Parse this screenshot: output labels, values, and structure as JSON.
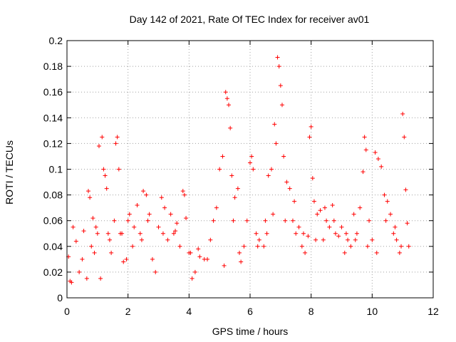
{
  "chart_data": {
    "type": "scatter",
    "title": "Day 142 of 2021, Rate Of TEC Index for receiver av01",
    "xlabel": "GPS time / hours",
    "ylabel": "ROTI / TECUs",
    "xlim": [
      0,
      12
    ],
    "ylim": [
      0,
      0.2
    ],
    "xticks": [
      "0",
      "2",
      "4",
      "6",
      "8",
      "10",
      "12"
    ],
    "yticks": [
      "0",
      "0.02",
      "0.04",
      "0.06",
      "0.08",
      "0.1",
      "0.12",
      "0.14",
      "0.16",
      "0.18",
      "0.2"
    ],
    "grid": true,
    "marker": "+",
    "color": "#ff0000",
    "series": [
      {
        "name": "",
        "x": [
          0.05,
          0.1,
          0.2,
          0.3,
          0.4,
          0.5,
          0.55,
          0.65,
          0.7,
          0.75,
          0.8,
          0.85,
          0.95,
          1.0,
          1.05,
          1.15,
          1.2,
          1.25,
          1.3,
          1.35,
          1.45,
          1.55,
          1.6,
          1.65,
          1.7,
          1.75,
          1.85,
          1.95,
          2.05,
          2.15,
          2.2,
          2.3,
          2.4,
          2.5,
          2.6,
          2.65,
          2.7,
          2.8,
          2.9,
          3.0,
          3.1,
          3.2,
          3.3,
          3.4,
          3.5,
          3.6,
          3.7,
          3.8,
          3.85,
          3.9,
          4.0,
          4.1,
          4.2,
          4.3,
          4.5,
          4.7,
          4.8,
          4.9,
          5.0,
          5.1,
          5.2,
          5.25,
          5.3,
          5.35,
          5.4,
          5.5,
          5.6,
          5.7,
          5.8,
          5.9,
          6.0,
          6.05,
          6.1,
          6.2,
          6.3,
          6.45,
          6.5,
          6.6,
          6.7,
          6.8,
          6.85,
          6.9,
          6.95,
          7.0,
          7.05,
          7.1,
          7.2,
          7.3,
          7.4,
          7.5,
          7.6,
          7.7,
          7.8,
          7.9,
          7.95,
          8.0,
          8.05,
          8.1,
          8.2,
          8.3,
          8.4,
          8.5,
          8.6,
          8.7,
          8.8,
          8.9,
          9.0,
          9.1,
          9.2,
          9.3,
          9.4,
          9.5,
          9.6,
          9.7,
          9.75,
          9.8,
          9.9,
          10.0,
          10.1,
          10.2,
          10.3,
          10.4,
          10.5,
          10.6,
          10.7,
          10.8,
          10.9,
          11.0,
          11.05,
          11.1,
          11.15,
          11.2,
          0.15,
          0.9,
          1.1,
          1.4,
          1.8,
          2.0,
          2.45,
          3.15,
          3.55,
          4.05,
          4.35,
          4.6,
          5.15,
          5.45,
          5.65,
          6.25,
          6.55,
          6.75,
          7.15,
          7.45,
          7.75,
          8.15,
          8.45,
          8.75,
          9.15,
          9.45,
          9.85,
          10.15,
          10.45,
          10.75,
          10.95
        ],
        "y": [
          0.032,
          0.013,
          0.055,
          0.044,
          0.02,
          0.03,
          0.052,
          0.015,
          0.083,
          0.078,
          0.04,
          0.062,
          0.055,
          0.05,
          0.118,
          0.125,
          0.1,
          0.095,
          0.085,
          0.05,
          0.035,
          0.06,
          0.12,
          0.125,
          0.1,
          0.05,
          0.028,
          0.03,
          0.065,
          0.04,
          0.055,
          0.072,
          0.05,
          0.083,
          0.08,
          0.06,
          0.065,
          0.03,
          0.02,
          0.055,
          0.078,
          0.07,
          0.045,
          0.065,
          0.05,
          0.058,
          0.04,
          0.083,
          0.08,
          0.062,
          0.035,
          0.015,
          0.02,
          0.038,
          0.03,
          0.045,
          0.06,
          0.07,
          0.1,
          0.11,
          0.16,
          0.155,
          0.15,
          0.132,
          0.095,
          0.078,
          0.085,
          0.028,
          0.04,
          0.06,
          0.105,
          0.11,
          0.1,
          0.05,
          0.045,
          0.04,
          0.06,
          0.095,
          0.1,
          0.135,
          0.12,
          0.187,
          0.18,
          0.165,
          0.15,
          0.11,
          0.09,
          0.085,
          0.06,
          0.05,
          0.055,
          0.04,
          0.035,
          0.048,
          0.125,
          0.133,
          0.093,
          0.075,
          0.065,
          0.068,
          0.045,
          0.06,
          0.055,
          0.072,
          0.05,
          0.048,
          0.055,
          0.035,
          0.045,
          0.04,
          0.065,
          0.05,
          0.07,
          0.098,
          0.125,
          0.115,
          0.06,
          0.045,
          0.113,
          0.108,
          0.102,
          0.08,
          0.075,
          0.065,
          0.05,
          0.045,
          0.035,
          0.143,
          0.125,
          0.084,
          0.058,
          0.04,
          0.012,
          0.035,
          0.015,
          0.045,
          0.05,
          0.06,
          0.045,
          0.05,
          0.052,
          0.035,
          0.032,
          0.03,
          0.025,
          0.06,
          0.035,
          0.04,
          0.05,
          0.065,
          0.06,
          0.075,
          0.05,
          0.045,
          0.07,
          0.06,
          0.05,
          0.045,
          0.04,
          0.035,
          0.06,
          0.055,
          0.04
        ]
      }
    ]
  }
}
